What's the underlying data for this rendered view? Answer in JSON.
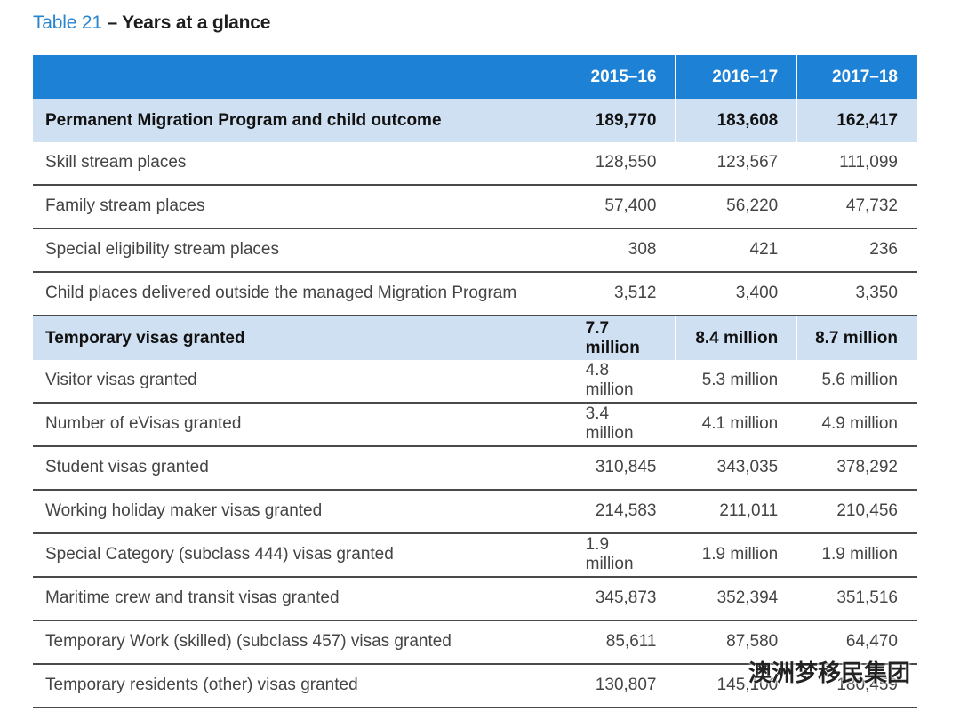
{
  "header": {
    "title_number": "Table 21",
    "title_text": "– Years at a glance"
  },
  "table": {
    "columns": [
      "2015–16",
      "2016–17",
      "2017–18"
    ],
    "rows": [
      {
        "label": "Permanent Migration Program and child outcome",
        "values": [
          "189,770",
          "183,608",
          "162,417"
        ],
        "section": true
      },
      {
        "label": "Skill stream places",
        "values": [
          "128,550",
          "123,567",
          "111,099"
        ],
        "section": false
      },
      {
        "label": "Family stream places",
        "values": [
          "57,400",
          "56,220",
          "47,732"
        ],
        "section": false
      },
      {
        "label": "Special eligibility stream places",
        "values": [
          "308",
          "421",
          "236"
        ],
        "section": false
      },
      {
        "label": "Child places delivered outside the managed Migration Program",
        "values": [
          "3,512",
          "3,400",
          "3,350"
        ],
        "section": false
      },
      {
        "label": "Temporary visas granted",
        "values": [
          "7.7 million",
          "8.4 million",
          "8.7 million"
        ],
        "section": true
      },
      {
        "label": "Visitor visas granted",
        "values": [
          "4.8 million",
          "5.3 million",
          "5.6 million"
        ],
        "section": false
      },
      {
        "label": "Number of eVisas granted",
        "values": [
          "3.4 million",
          "4.1 million",
          "4.9 million"
        ],
        "section": false
      },
      {
        "label": "Student visas granted",
        "values": [
          "310,845",
          "343,035",
          "378,292"
        ],
        "section": false
      },
      {
        "label": "Working holiday maker visas granted",
        "values": [
          "214,583",
          "211,011",
          "210,456"
        ],
        "section": false
      },
      {
        "label": "Special Category (subclass 444) visas granted",
        "values": [
          "1.9 million",
          "1.9 million",
          "1.9 million"
        ],
        "section": false
      },
      {
        "label": "Maritime crew and transit visas granted",
        "values": [
          "345,873",
          "352,394",
          "351,516"
        ],
        "section": false
      },
      {
        "label": "Temporary Work (skilled) (subclass 457) visas granted",
        "values": [
          "85,611",
          "87,580",
          "64,470"
        ],
        "section": false
      },
      {
        "label": "Temporary residents (other) visas granted",
        "values": [
          "130,807",
          "145,100",
          "180,459"
        ],
        "section": false
      }
    ]
  },
  "watermark": "澳洲梦移民集团"
}
